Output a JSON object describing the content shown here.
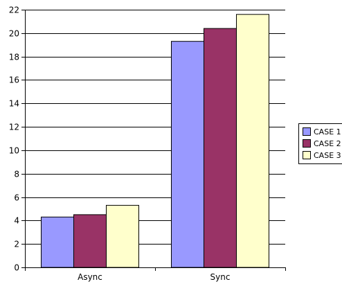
{
  "chart_data": {
    "type": "bar",
    "title": "",
    "xlabel": "",
    "ylabel": "",
    "ylim": [
      0,
      22
    ],
    "yticks": [
      0,
      2,
      4,
      6,
      8,
      10,
      12,
      14,
      16,
      18,
      20,
      22
    ],
    "grid": true,
    "legend_position": "right",
    "categories": [
      "Async",
      "Sync"
    ],
    "series": [
      {
        "name": "CASE 1",
        "color": "#9999ff",
        "values": [
          4.3,
          19.3
        ]
      },
      {
        "name": "CASE 2",
        "color": "#993366",
        "values": [
          4.5,
          20.4
        ]
      },
      {
        "name": "CASE 3",
        "color": "#ffffcc",
        "values": [
          5.3,
          21.6
        ]
      }
    ]
  }
}
